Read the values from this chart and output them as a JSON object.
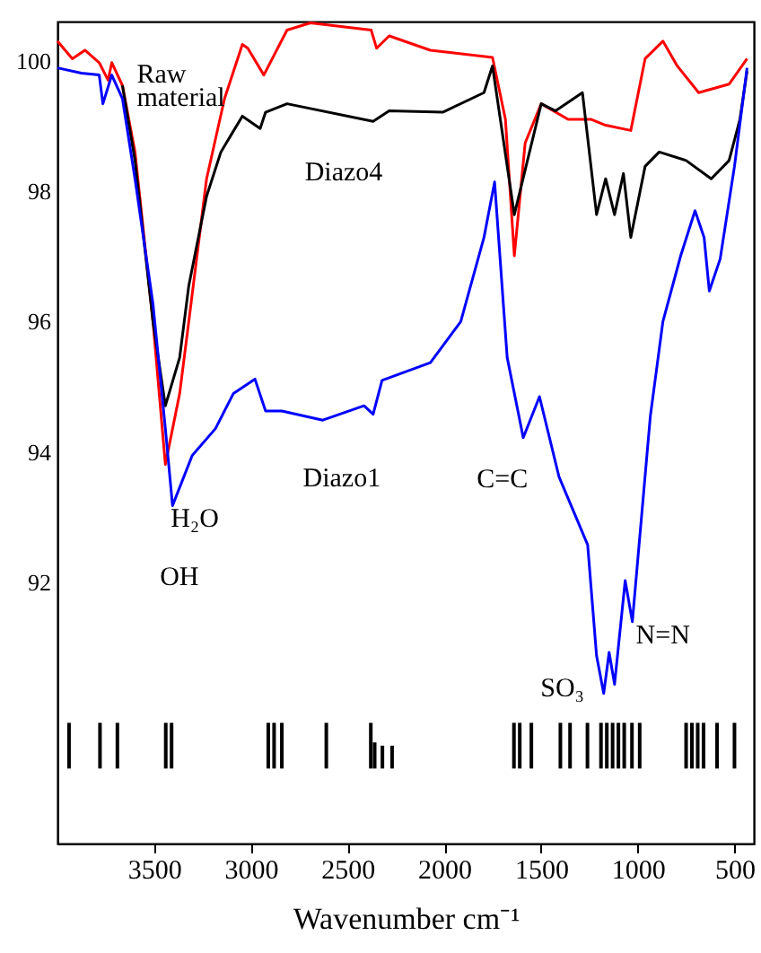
{
  "chart_data": {
    "type": "line",
    "xlabel": "Wavenumber cm⁻¹",
    "xlim": [
      4000,
      400
    ],
    "xticks": [
      3500,
      3000,
      2500,
      2000,
      1500,
      1000,
      500
    ],
    "ylim": [
      88,
      100.6
    ],
    "yticks": [
      100,
      98,
      96,
      94,
      92
    ],
    "marker": "none",
    "annotations": [
      "H₂O",
      "OH",
      "C=C",
      "SO₃",
      "N=N"
    ],
    "series": [
      {
        "name": "Raw material",
        "color": "#ff0000",
        "x": [
          4000,
          3923,
          3858,
          3784,
          3738,
          3719,
          3664,
          3599,
          3506,
          3442,
          3368,
          3321,
          3229,
          3136,
          3044,
          3016,
          2933,
          2813,
          2692,
          2378,
          2350,
          2285,
          2072,
          1751,
          1684,
          1638,
          1582,
          1499,
          1360,
          1240,
          1166,
          1036,
          962,
          870,
          796,
          685,
          528,
          435
        ],
        "values": [
          100.3,
          100.03,
          100.16,
          99.97,
          99.7,
          99.97,
          99.62,
          98.6,
          96.0,
          93.81,
          94.9,
          96.0,
          98.19,
          99.42,
          100.25,
          100.19,
          99.78,
          100.47,
          100.58,
          100.47,
          100.19,
          100.38,
          100.16,
          100.05,
          99.1,
          97.01,
          98.74,
          99.34,
          99.1,
          99.1,
          99.01,
          98.93,
          100.03,
          100.3,
          99.92,
          99.51,
          99.64,
          100.03
        ]
      },
      {
        "name": "Diazo4",
        "color": "#000000",
        "x": [
          3664,
          3599,
          3506,
          3442,
          3368,
          3321,
          3229,
          3155,
          3044,
          2952,
          2924,
          2813,
          2368,
          2285,
          2008,
          1795,
          1751,
          1638,
          1499,
          1425,
          1286,
          1213,
          1166,
          1120,
          1074,
          1036,
          962,
          889,
          750,
          620,
          528,
          472,
          435
        ],
        "values": [
          99.62,
          98.47,
          96.0,
          94.71,
          95.45,
          96.55,
          97.92,
          98.6,
          99.15,
          98.96,
          99.21,
          99.34,
          99.07,
          99.23,
          99.21,
          99.51,
          99.92,
          97.64,
          99.34,
          99.23,
          99.51,
          97.64,
          98.19,
          97.64,
          98.27,
          97.29,
          98.38,
          98.6,
          98.47,
          98.19,
          98.47,
          99.1,
          99.84
        ]
      },
      {
        "name": "Diazo1",
        "color": "#0000ff",
        "x": [
          4000,
          3876,
          3784,
          3765,
          3719,
          3664,
          3599,
          3506,
          3442,
          3405,
          3303,
          3183,
          3090,
          2979,
          2924,
          2840,
          2628,
          2415,
          2368,
          2322,
          2072,
          1915,
          1795,
          1740,
          1675,
          1592,
          1508,
          1407,
          1259,
          1213,
          1176,
          1148,
          1120,
          1065,
          1028,
          935,
          870,
          778,
          704,
          657,
          630,
          574,
          500,
          435
        ],
        "values": [
          99.89,
          99.81,
          99.78,
          99.34,
          99.78,
          99.42,
          98.19,
          96.27,
          94.36,
          93.18,
          93.95,
          94.36,
          94.9,
          95.12,
          94.63,
          94.63,
          94.49,
          94.71,
          94.58,
          95.1,
          95.37,
          96.0,
          97.29,
          98.14,
          95.45,
          94.22,
          94.85,
          93.62,
          92.58,
          90.88,
          90.3,
          90.93,
          90.44,
          92.03,
          91.4,
          94.55,
          96.0,
          97.01,
          97.7,
          97.29,
          96.47,
          96.96,
          98.38,
          99.89
        ]
      },
      {
        "type": "bar",
        "color": "#000000",
        "x": [
          3940,
          3780,
          3690,
          3440,
          3410,
          2910,
          2880,
          2840,
          2610,
          2380,
          2360,
          2320,
          2270,
          1640,
          1610,
          1550,
          1400,
          1350,
          1260,
          1190,
          1160,
          1130,
          1100,
          1070,
          1030,
          990,
          750,
          720,
          690,
          660,
          590,
          500
        ],
        "base": [
          89.15,
          89.15,
          89.15,
          89.15,
          89.15,
          89.15,
          89.15,
          89.15,
          89.15,
          89.15,
          89.15,
          89.15,
          89.15,
          89.15,
          89.15,
          89.15,
          89.15,
          89.15,
          89.15,
          89.15,
          89.15,
          89.15,
          89.15,
          89.15,
          89.15,
          89.15,
          89.15,
          89.15,
          89.15,
          89.15,
          89.15,
          89.15
        ],
        "values": [
          0.7,
          0.7,
          0.7,
          0.7,
          0.7,
          0.7,
          0.7,
          0.7,
          0.7,
          0.7,
          0.4,
          0.35,
          0.35,
          0.7,
          0.7,
          0.7,
          0.7,
          0.7,
          0.7,
          0.7,
          0.7,
          0.7,
          0.7,
          0.7,
          0.7,
          0.7,
          0.7,
          0.7,
          0.7,
          0.7,
          0.7,
          0.7
        ]
      }
    ]
  }
}
